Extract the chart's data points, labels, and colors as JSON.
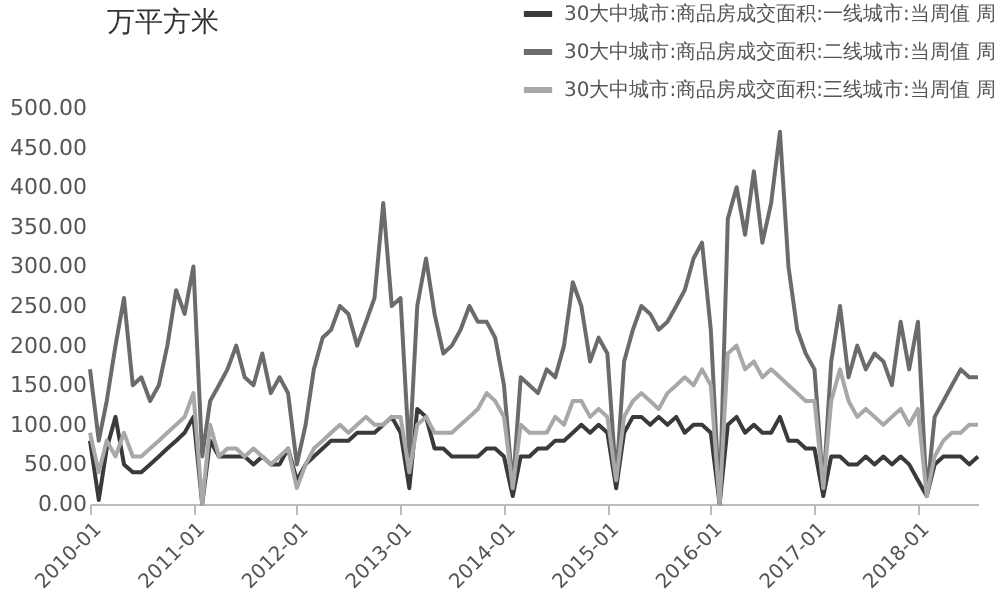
{
  "chart_data": {
    "type": "line",
    "ylabel": "万平方米",
    "x": [
      "2010-01",
      "2010-02",
      "2010-03",
      "2010-04",
      "2010-05",
      "2010-06",
      "2010-07",
      "2010-08",
      "2010-09",
      "2010-10",
      "2010-11",
      "2010-12",
      "2011-01",
      "2011-02",
      "2011-03",
      "2011-04",
      "2011-05",
      "2011-06",
      "2011-07",
      "2011-08",
      "2011-09",
      "2011-10",
      "2011-11",
      "2011-12",
      "2012-01",
      "2012-02",
      "2012-03",
      "2012-04",
      "2012-05",
      "2012-06",
      "2012-07",
      "2012-08",
      "2012-09",
      "2012-10",
      "2012-11",
      "2012-12",
      "2013-01",
      "2013-02",
      "2013-03",
      "2013-04",
      "2013-05",
      "2013-06",
      "2013-07",
      "2013-08",
      "2013-09",
      "2013-10",
      "2013-11",
      "2013-12",
      "2014-01",
      "2014-02",
      "2014-03",
      "2014-04",
      "2014-05",
      "2014-06",
      "2014-07",
      "2014-08",
      "2014-09",
      "2014-10",
      "2014-11",
      "2014-12",
      "2015-01",
      "2015-02",
      "2015-03",
      "2015-04",
      "2015-05",
      "2015-06",
      "2015-07",
      "2015-08",
      "2015-09",
      "2015-10",
      "2015-11",
      "2015-12",
      "2016-01",
      "2016-02",
      "2016-03",
      "2016-04",
      "2016-05",
      "2016-06",
      "2016-07",
      "2016-08",
      "2016-09",
      "2016-10",
      "2016-11",
      "2016-12",
      "2017-01",
      "2017-02",
      "2017-03",
      "2017-04",
      "2017-05",
      "2017-06",
      "2017-07",
      "2017-08",
      "2017-09",
      "2017-10",
      "2017-11",
      "2017-12",
      "2018-01",
      "2018-02",
      "2018-03",
      "2018-04",
      "2018-05",
      "2018-06",
      "2018-07",
      "2018-08"
    ],
    "series": [
      {
        "name": "30大中城市:商品房成交面积:一线城市:当周值 周",
        "color": "#3a3a3a",
        "values": [
          80,
          5,
          70,
          110,
          50,
          40,
          40,
          50,
          60,
          70,
          80,
          90,
          110,
          0,
          80,
          60,
          60,
          60,
          60,
          50,
          60,
          50,
          50,
          70,
          30,
          50,
          60,
          70,
          80,
          80,
          80,
          90,
          90,
          90,
          100,
          110,
          90,
          20,
          120,
          110,
          70,
          70,
          60,
          60,
          60,
          60,
          70,
          70,
          60,
          10,
          60,
          60,
          70,
          70,
          80,
          80,
          90,
          100,
          90,
          100,
          90,
          20,
          90,
          110,
          110,
          100,
          110,
          100,
          110,
          90,
          100,
          100,
          90,
          0,
          100,
          110,
          90,
          100,
          90,
          90,
          110,
          80,
          80,
          70,
          70,
          10,
          60,
          60,
          50,
          50,
          60,
          50,
          60,
          50,
          60,
          50,
          30,
          10,
          50,
          60,
          60,
          60,
          50,
          60
        ]
      },
      {
        "name": "30大中城市:商品房成交面积:二线城市:当周值 周",
        "color": "#6b6b6b",
        "values": [
          170,
          80,
          130,
          200,
          260,
          150,
          160,
          130,
          150,
          200,
          270,
          240,
          300,
          60,
          130,
          150,
          170,
          200,
          160,
          150,
          190,
          140,
          160,
          140,
          50,
          100,
          170,
          210,
          220,
          250,
          240,
          200,
          230,
          260,
          380,
          250,
          260,
          60,
          250,
          310,
          240,
          190,
          200,
          220,
          250,
          230,
          230,
          210,
          150,
          20,
          160,
          150,
          140,
          170,
          160,
          200,
          280,
          250,
          180,
          210,
          190,
          30,
          180,
          220,
          250,
          240,
          220,
          230,
          250,
          270,
          310,
          330,
          220,
          0,
          360,
          400,
          340,
          420,
          330,
          380,
          470,
          300,
          220,
          190,
          170,
          20,
          180,
          250,
          160,
          200,
          170,
          190,
          180,
          150,
          230,
          170,
          230,
          10,
          110,
          130,
          150,
          170,
          160,
          160
        ]
      },
      {
        "name": "30大中城市:商品房成交面积:三线城市:当周值 周",
        "color": "#a8a8a8",
        "values": [
          90,
          40,
          80,
          60,
          90,
          60,
          60,
          70,
          80,
          90,
          100,
          110,
          140,
          0,
          100,
          60,
          70,
          70,
          60,
          70,
          60,
          50,
          60,
          70,
          20,
          50,
          70,
          80,
          90,
          100,
          90,
          100,
          110,
          100,
          100,
          110,
          110,
          40,
          100,
          110,
          90,
          90,
          90,
          100,
          110,
          120,
          140,
          130,
          110,
          20,
          100,
          90,
          90,
          90,
          110,
          100,
          130,
          130,
          110,
          120,
          110,
          30,
          110,
          130,
          140,
          130,
          120,
          140,
          150,
          160,
          150,
          170,
          150,
          0,
          190,
          200,
          170,
          180,
          160,
          170,
          160,
          150,
          140,
          130,
          130,
          20,
          130,
          170,
          130,
          110,
          120,
          110,
          100,
          110,
          120,
          100,
          120,
          10,
          60,
          80,
          90,
          90,
          100,
          100
        ]
      }
    ],
    "xlim": [
      "2010-01",
      "2018-08"
    ],
    "xticks": [
      "2010-01",
      "2011-01",
      "2012-01",
      "2013-01",
      "2014-01",
      "2015-01",
      "2016-01",
      "2017-01",
      "2018-01"
    ],
    "ylim": [
      0,
      500
    ],
    "yticks": [
      {
        "value": 0,
        "label": "0.00"
      },
      {
        "value": 50,
        "label": "50.00"
      },
      {
        "value": 100,
        "label": "100.00"
      },
      {
        "value": 150,
        "label": "150.00"
      },
      {
        "value": 200,
        "label": "200.00"
      },
      {
        "value": 250,
        "label": "250.00"
      },
      {
        "value": 300,
        "label": "300.00"
      },
      {
        "value": 350,
        "label": "350.00"
      },
      {
        "value": 400,
        "label": "400.00"
      },
      {
        "value": 450,
        "label": "450.00"
      },
      {
        "value": 500,
        "label": "500.00"
      }
    ],
    "legend": "top right",
    "grid": false,
    "marker": "none",
    "line_style": "solid"
  }
}
